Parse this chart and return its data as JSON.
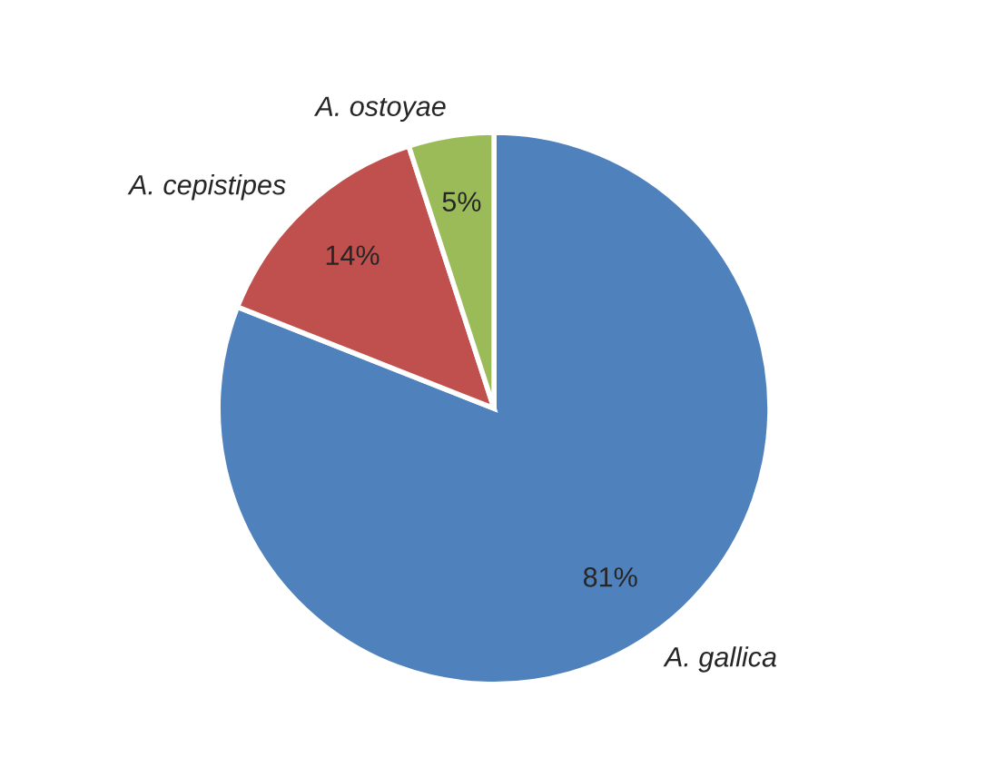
{
  "chart_data": {
    "type": "pie",
    "categories": [
      "A. gallica",
      "A. cepistipes",
      "A. ostoyae"
    ],
    "values": [
      81,
      14,
      5
    ],
    "value_labels": [
      "81%",
      "14%",
      "5%"
    ],
    "colors": [
      "#4f81bd",
      "#c0504d",
      "#9bbb59"
    ],
    "legend": false
  }
}
